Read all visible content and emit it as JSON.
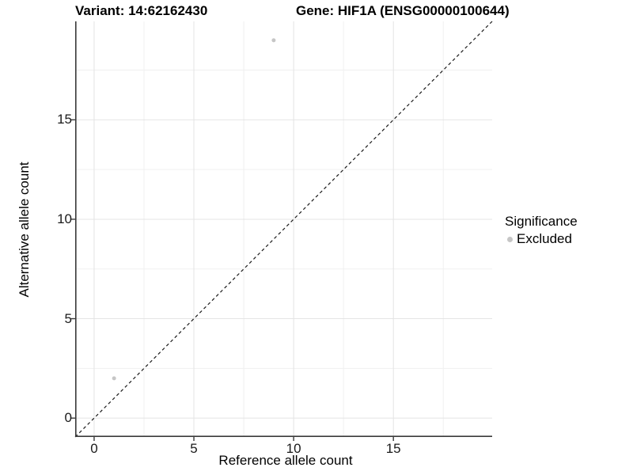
{
  "chart_data": {
    "type": "scatter",
    "titles": {
      "left": "Variant: 14:62162430",
      "right": "Gene: HIF1A (ENSG00000100644)"
    },
    "xlabel": "Reference allele count",
    "ylabel": "Alternative allele count",
    "xlim": [
      -0.95,
      19.95
    ],
    "ylim": [
      -0.95,
      19.95
    ],
    "x_ticks": [
      0,
      5,
      10,
      15
    ],
    "y_ticks": [
      0,
      5,
      10,
      15
    ],
    "x_minor_ticks": [
      2.5,
      7.5,
      12.5,
      17.5
    ],
    "y_minor_ticks": [
      2.5,
      7.5,
      12.5,
      17.5
    ],
    "grid": "major+minor",
    "series": [
      {
        "name": "Excluded",
        "marker": "circle",
        "color": "#c6c6c6",
        "points": [
          {
            "x": 1,
            "y": 2
          },
          {
            "x": 9,
            "y": 19
          }
        ]
      }
    ],
    "reference_line": {
      "kind": "identity",
      "style": "dashed",
      "color": "#1a1a1a",
      "from": [
        -0.95,
        -0.95
      ],
      "to": [
        19.95,
        19.95
      ]
    },
    "legend": {
      "position": "right",
      "title": "Significance",
      "entries": [
        {
          "label": "Excluded",
          "color": "#c6c6c6",
          "marker": "circle"
        }
      ]
    },
    "colors": {
      "grid_major": "#e4e4e4",
      "grid_minor": "#f0f0f0",
      "axis": "#3a3a3a",
      "text": "#000000"
    }
  }
}
